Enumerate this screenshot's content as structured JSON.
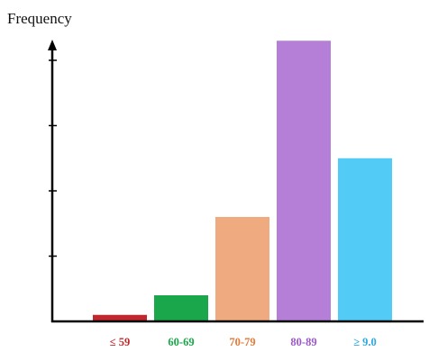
{
  "chart_data": {
    "type": "bar",
    "ylabel": "Frequency",
    "xlabel": "",
    "title": "",
    "categories": [
      "≤ 59",
      "60-69",
      "70-79",
      "80-89",
      "≥ 9.0"
    ],
    "values": [
      0.1,
      0.4,
      1.6,
      4.3,
      2.5
    ],
    "ylim": [
      0,
      5
    ],
    "yticks": [
      1,
      2,
      3,
      4
    ],
    "show_tick_labels_y": false,
    "grid": false,
    "bar_colors": [
      "#c0282d",
      "#1aa64a",
      "#f0aa80",
      "#b57fd8",
      "#52ccf7"
    ],
    "label_colors": [
      "#c0282d",
      "#1aa64a",
      "#e07b39",
      "#9b59c9",
      "#2fa9e0"
    ],
    "axis_color": "#000000"
  }
}
